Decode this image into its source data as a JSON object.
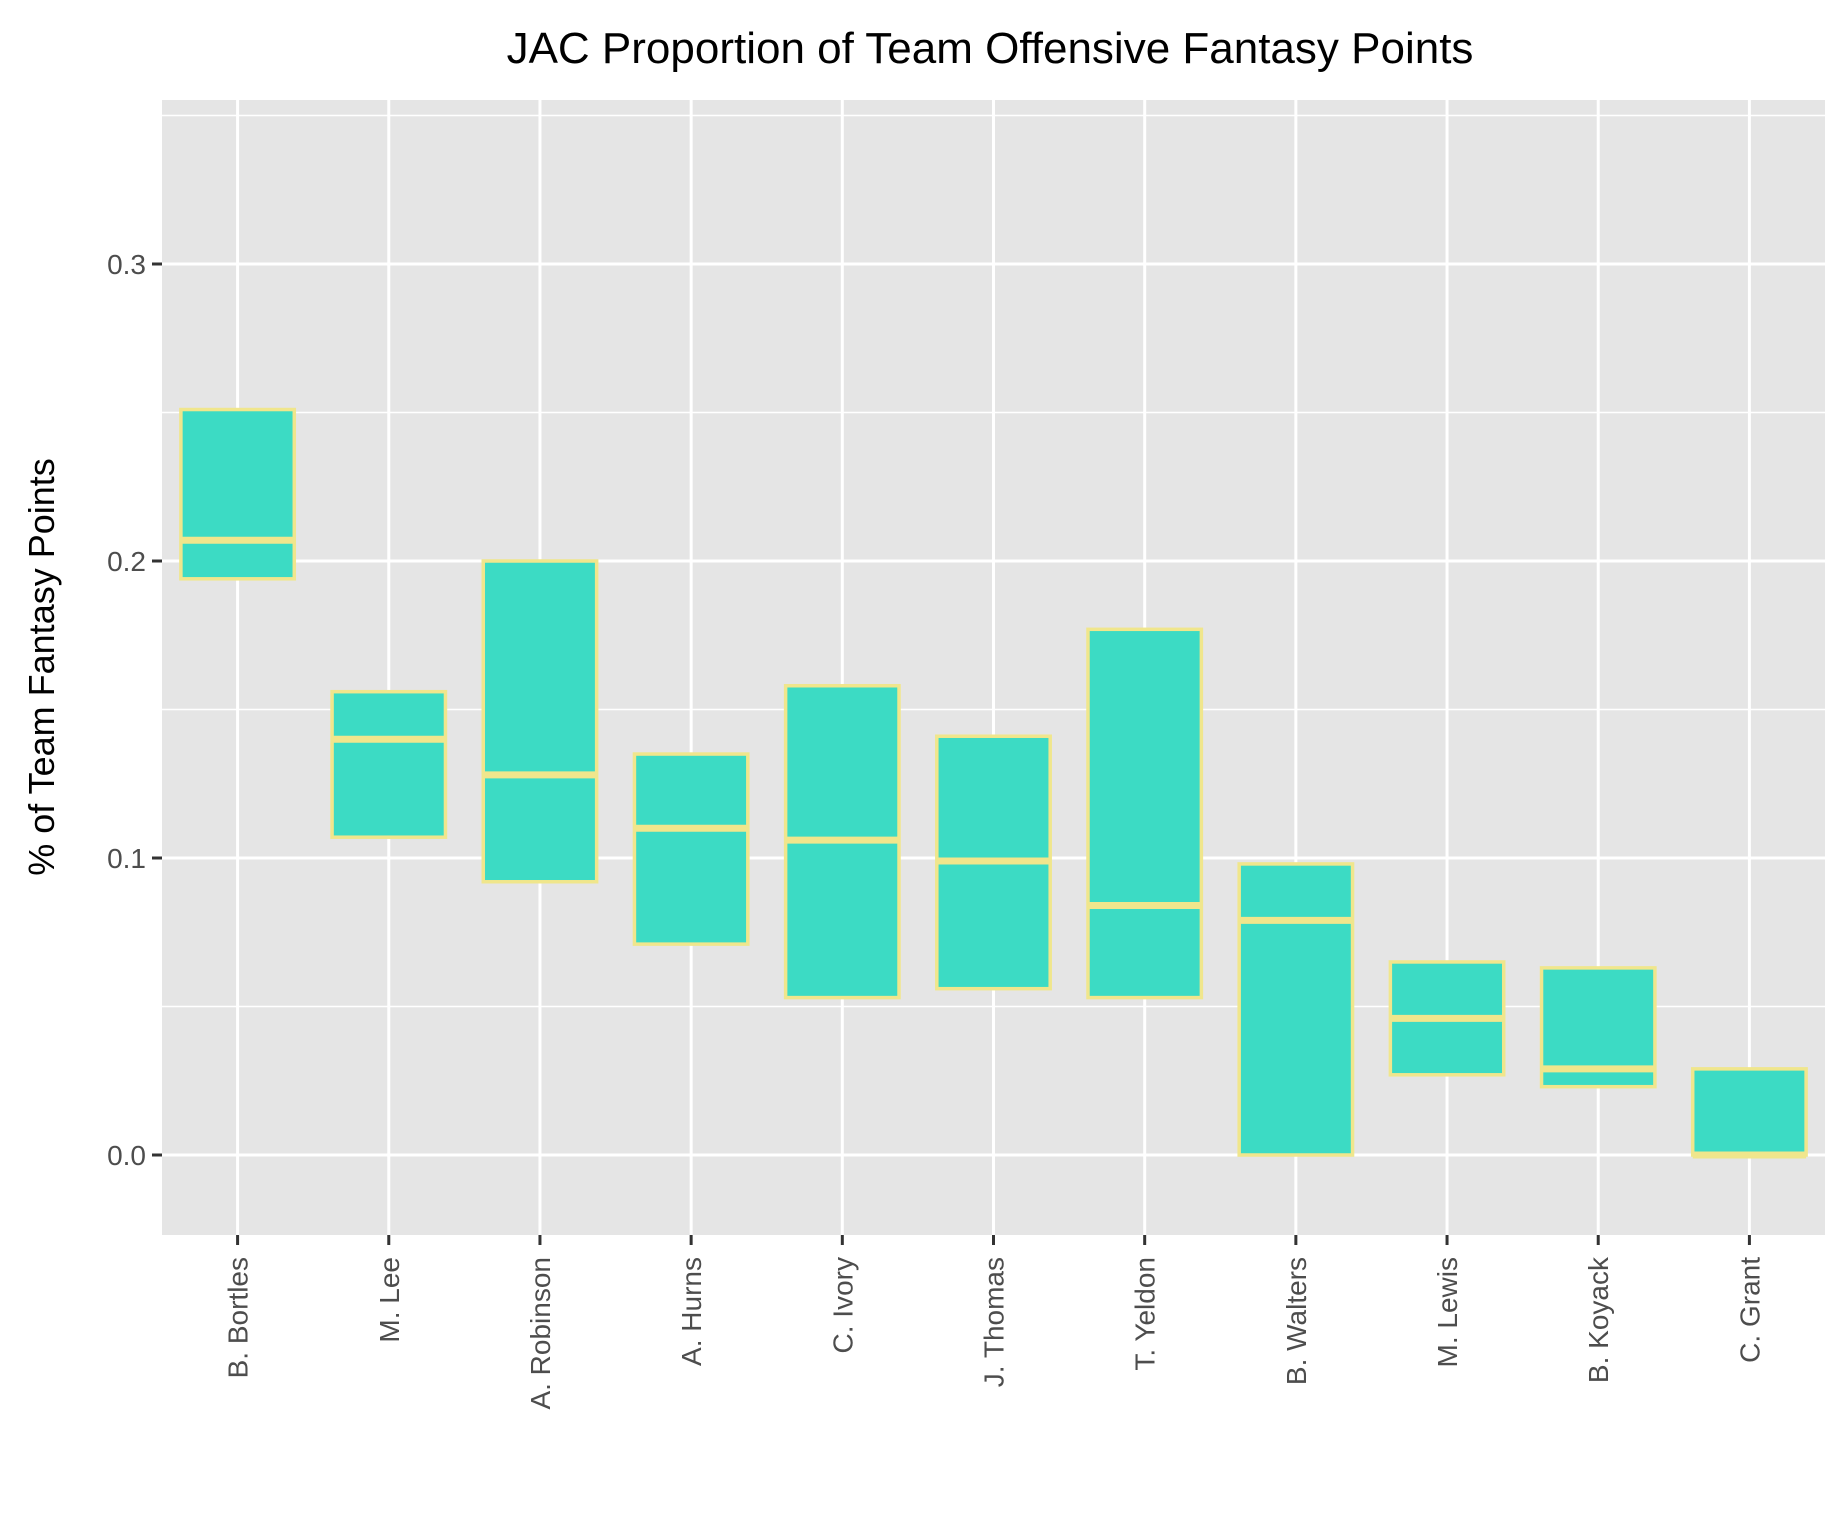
{
  "chart_data": {
    "type": "boxplot",
    "title": "JAC Proportion of Team Offensive Fantasy Points",
    "xlabel": "",
    "ylabel": "% of Team Fantasy Points",
    "ylim": [
      -0.027,
      0.35
    ],
    "yticks": [
      0.0,
      0.1,
      0.2,
      0.3
    ],
    "ytick_labels": [
      "0.0",
      "0.1",
      "0.2",
      "0.3"
    ],
    "grid": true,
    "categories": [
      "B. Bortles",
      "M. Lee",
      "A. Robinson",
      "A. Hurns",
      "C. Ivory",
      "J. Thomas",
      "T. Yeldon",
      "B. Walters",
      "M. Lewis",
      "B. Koyack",
      "C. Grant"
    ],
    "series": [
      {
        "q1": [
          0.194,
          0.107,
          0.092,
          0.071,
          0.053,
          0.056,
          0.053,
          0.0,
          0.027,
          0.023,
          0.0
        ],
        "median": [
          0.207,
          0.14,
          0.128,
          0.11,
          0.106,
          0.099,
          0.084,
          0.079,
          0.046,
          0.029,
          0.0
        ],
        "q3": [
          0.251,
          0.156,
          0.2,
          0.135,
          0.158,
          0.141,
          0.177,
          0.098,
          0.065,
          0.063,
          0.029
        ]
      }
    ],
    "colors": {
      "fill": "#3cdbc4",
      "outline": "#f0e68c",
      "panel": "#e5e5e5",
      "grid": "#ffffff",
      "tick_text": "#4d4d4d",
      "tick_mark": "#333333"
    }
  }
}
